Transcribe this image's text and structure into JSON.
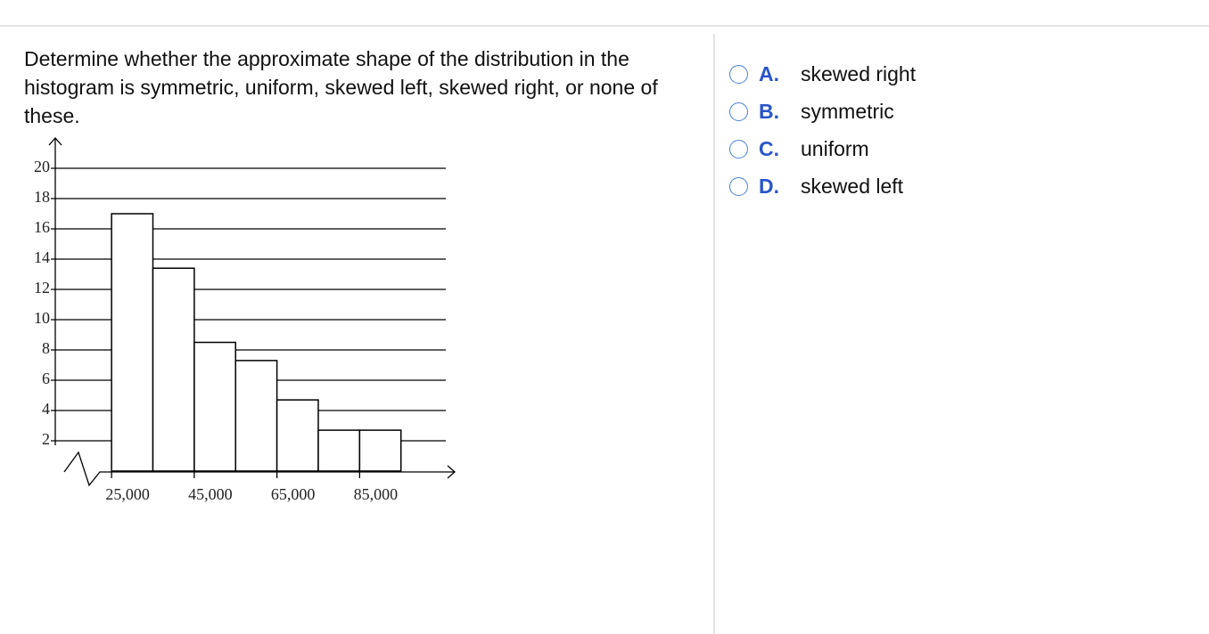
{
  "question": "Determine whether the approximate shape of the distribution in the histogram is symmetric, uniform, skewed left, skewed right, or none of these.",
  "chart_data": {
    "type": "histogram",
    "bins": [
      25000,
      35000,
      45000,
      55000,
      65000,
      75000,
      85000,
      95000
    ],
    "values": [
      17,
      13.4,
      8.5,
      7.3,
      4.7,
      2.7,
      2.7
    ],
    "color": "#ffffff",
    "xlim": [
      18500,
      108000
    ],
    "xticks": [
      {
        "value": 25000,
        "label": "25,000"
      },
      {
        "value": 45000,
        "label": "45,000"
      },
      {
        "value": 65000,
        "label": "65,000"
      },
      {
        "value": 85000,
        "label": "85,000"
      }
    ],
    "ylim": [
      0,
      22
    ],
    "yticks": [
      2,
      4,
      6,
      8,
      10,
      12,
      14,
      16,
      18,
      20
    ],
    "grid": true
  },
  "options": [
    {
      "letter": "A.",
      "text": "skewed right"
    },
    {
      "letter": "B.",
      "text": "symmetric"
    },
    {
      "letter": "C.",
      "text": "uniform"
    },
    {
      "letter": "D.",
      "text": "skewed left"
    }
  ]
}
